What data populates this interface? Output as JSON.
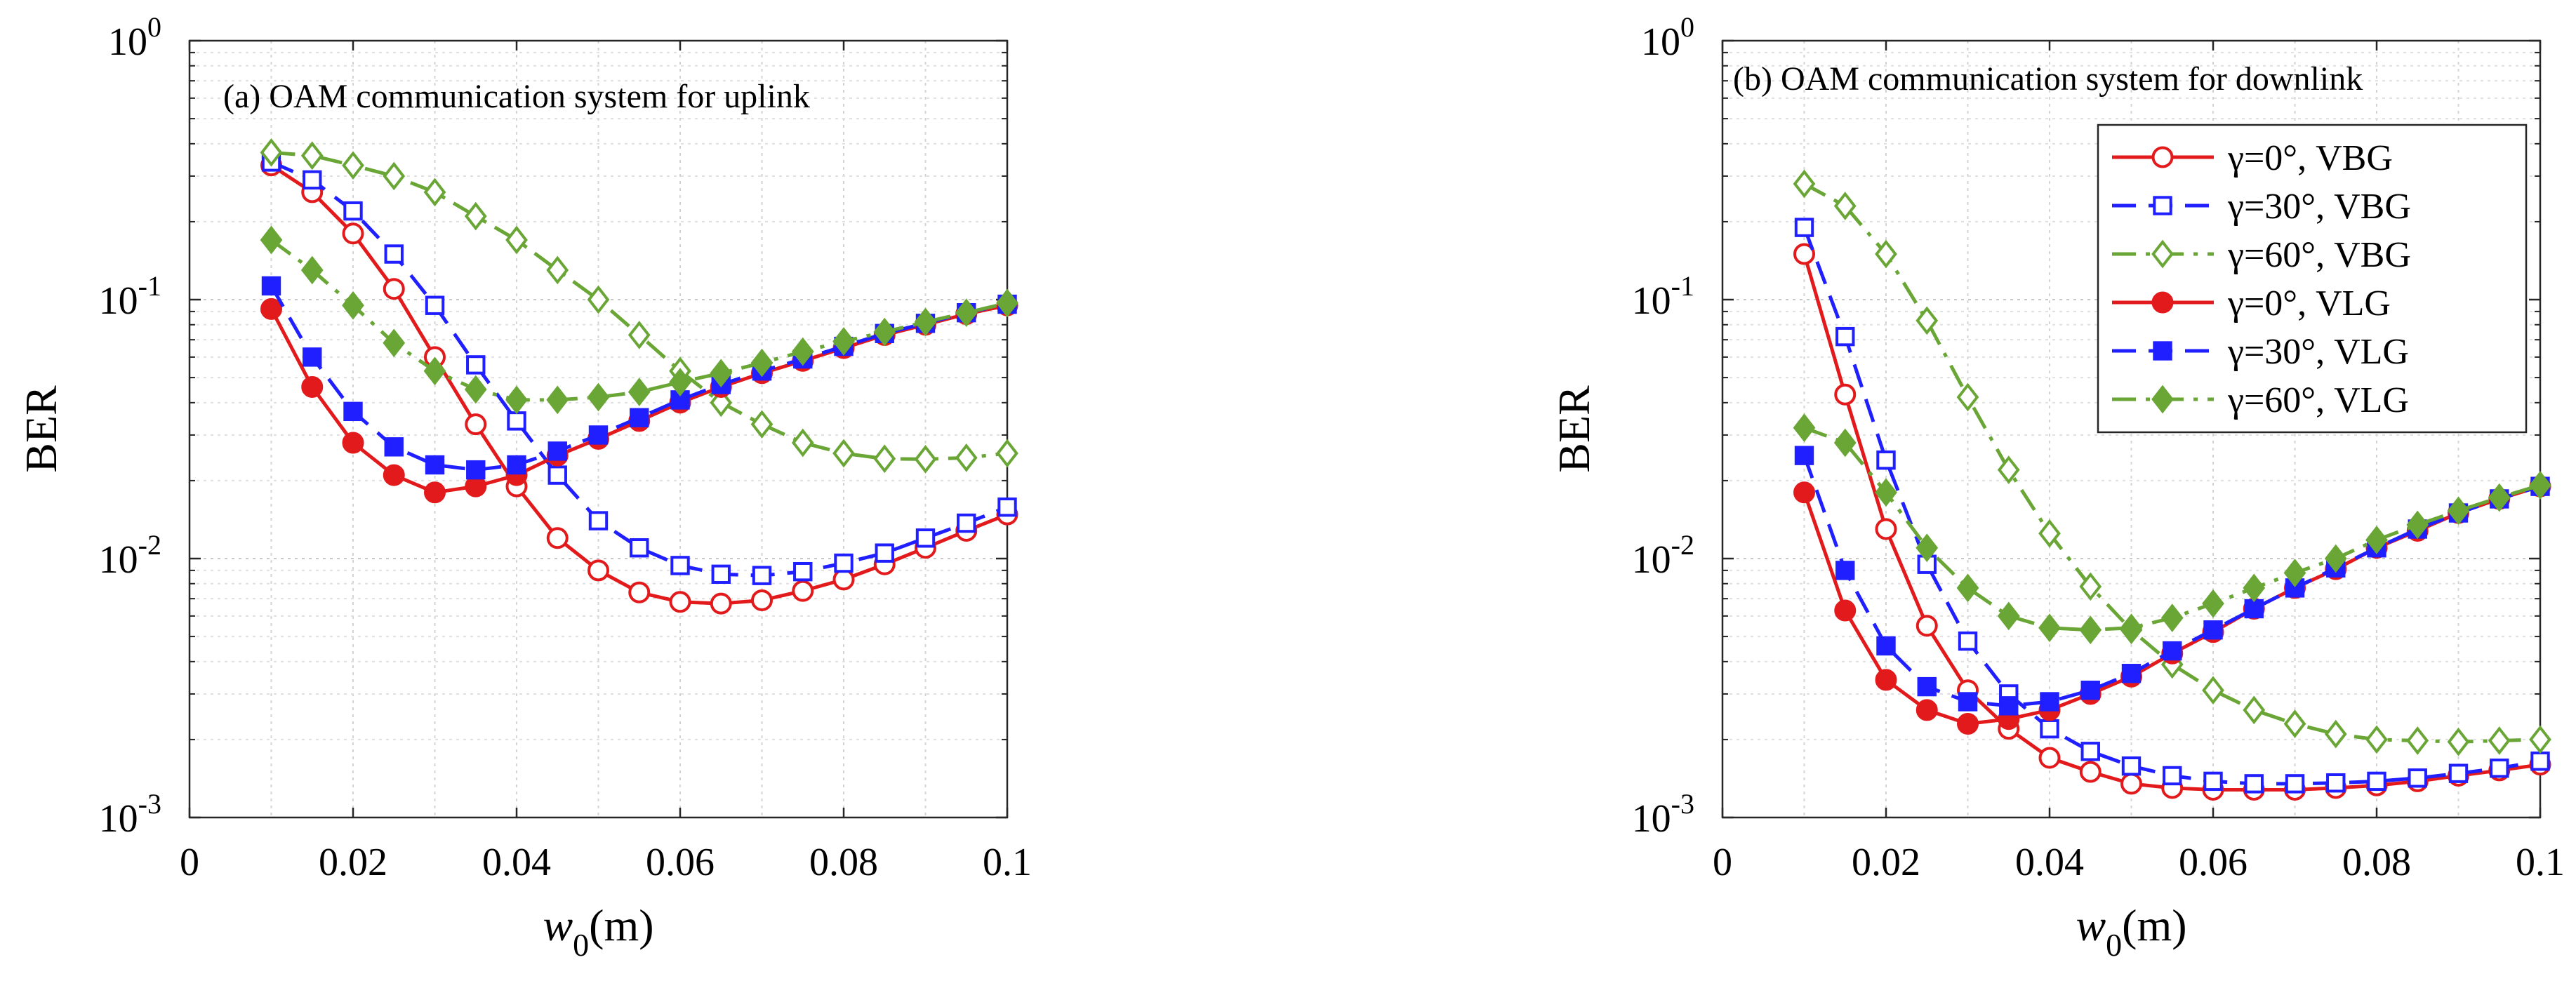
{
  "chart_data": [
    {
      "type": "line",
      "title": "(a) OAM communication system for uplink",
      "xlabel_base": "w",
      "xlabel_sub": "0",
      "xlabel_unit": "(m)",
      "ylabel": "BER",
      "xlim": [
        0,
        0.1
      ],
      "ylim": [
        0.001,
        1
      ],
      "yscale": "log",
      "grid": true,
      "legend": null,
      "xticks": [
        "0",
        "0.02",
        "0.04",
        "0.06",
        "0.08",
        "0.1"
      ],
      "yticks": [
        {
          "base": "10",
          "exp": "-3"
        },
        {
          "base": "10",
          "exp": "-2"
        },
        {
          "base": "10",
          "exp": "-1"
        },
        {
          "base": "10",
          "exp": "0"
        }
      ],
      "x": [
        0.01,
        0.015,
        0.02,
        0.025,
        0.03,
        0.035,
        0.04,
        0.045,
        0.05,
        0.055,
        0.06,
        0.065,
        0.07,
        0.075,
        0.08,
        0.085,
        0.09,
        0.095,
        0.1
      ],
      "series": [
        {
          "name": "γ=0°, VBG",
          "color": "#e31a1c",
          "dash": "solid",
          "marker": "circle",
          "filled": false,
          "values": [
            0.33,
            0.26,
            0.18,
            0.11,
            0.06,
            0.033,
            0.019,
            0.012,
            0.009,
            0.0074,
            0.0068,
            0.0067,
            0.0069,
            0.0075,
            0.0083,
            0.0095,
            0.011,
            0.0128,
            0.0148
          ]
        },
        {
          "name": "γ=30°, VBG",
          "color": "#1f1fff",
          "dash": "dashed",
          "marker": "square",
          "filled": false,
          "values": [
            0.34,
            0.29,
            0.22,
            0.15,
            0.095,
            0.056,
            0.034,
            0.021,
            0.014,
            0.011,
            0.0094,
            0.0087,
            0.0086,
            0.0089,
            0.0096,
            0.0105,
            0.012,
            0.0137,
            0.0158
          ]
        },
        {
          "name": "γ=60°, VBG",
          "color": "#6aa636",
          "dash": "dashdot",
          "marker": "diamond",
          "filled": false,
          "values": [
            0.37,
            0.36,
            0.33,
            0.3,
            0.26,
            0.21,
            0.17,
            0.13,
            0.1,
            0.073,
            0.053,
            0.04,
            0.033,
            0.028,
            0.0255,
            0.0243,
            0.0242,
            0.0245,
            0.0255
          ]
        },
        {
          "name": "γ=0°, VLG",
          "color": "#e31a1c",
          "dash": "solid",
          "marker": "circle",
          "filled": true,
          "values": [
            0.092,
            0.046,
            0.028,
            0.021,
            0.018,
            0.019,
            0.021,
            0.025,
            0.029,
            0.034,
            0.04,
            0.046,
            0.052,
            0.058,
            0.065,
            0.073,
            0.08,
            0.088,
            0.095
          ]
        },
        {
          "name": "γ=30°, VLG",
          "color": "#1f1fff",
          "dash": "dashed",
          "marker": "square",
          "filled": true,
          "values": [
            0.113,
            0.06,
            0.037,
            0.027,
            0.023,
            0.022,
            0.023,
            0.026,
            0.03,
            0.035,
            0.041,
            0.047,
            0.053,
            0.059,
            0.066,
            0.074,
            0.081,
            0.089,
            0.096
          ]
        },
        {
          "name": "γ=60°, VLG",
          "color": "#6aa636",
          "dash": "dashdot",
          "marker": "diamond",
          "filled": true,
          "values": [
            0.17,
            0.13,
            0.095,
            0.068,
            0.053,
            0.045,
            0.041,
            0.041,
            0.042,
            0.044,
            0.048,
            0.052,
            0.057,
            0.063,
            0.069,
            0.075,
            0.082,
            0.089,
            0.097
          ]
        }
      ]
    },
    {
      "type": "line",
      "title": "(b) OAM communication system for downlink",
      "xlabel_base": "w",
      "xlabel_sub": "0",
      "xlabel_unit": "(m)",
      "ylabel": "BER",
      "xlim": [
        0,
        0.1
      ],
      "ylim": [
        0.001,
        1
      ],
      "yscale": "log",
      "grid": true,
      "legend": "top-right",
      "xticks": [
        "0",
        "0.02",
        "0.04",
        "0.06",
        "0.08",
        "0.1"
      ],
      "yticks": [
        {
          "base": "10",
          "exp": "-3"
        },
        {
          "base": "10",
          "exp": "-2"
        },
        {
          "base": "10",
          "exp": "-1"
        },
        {
          "base": "10",
          "exp": "0"
        }
      ],
      "x": [
        0.01,
        0.015,
        0.02,
        0.025,
        0.03,
        0.035,
        0.04,
        0.045,
        0.05,
        0.055,
        0.06,
        0.065,
        0.07,
        0.075,
        0.08,
        0.085,
        0.09,
        0.095,
        0.1
      ],
      "series": [
        {
          "name": "γ=0°, VBG",
          "color": "#e31a1c",
          "dash": "solid",
          "marker": "circle",
          "filled": false,
          "values": [
            0.15,
            0.043,
            0.013,
            0.0055,
            0.0031,
            0.0022,
            0.0017,
            0.0015,
            0.00135,
            0.0013,
            0.00128,
            0.00128,
            0.00128,
            0.0013,
            0.00133,
            0.00138,
            0.00145,
            0.00152,
            0.0016
          ]
        },
        {
          "name": "γ=30°, VBG",
          "color": "#1f1fff",
          "dash": "dashed",
          "marker": "square",
          "filled": false,
          "values": [
            0.19,
            0.072,
            0.024,
            0.0095,
            0.0048,
            0.003,
            0.0022,
            0.0018,
            0.00158,
            0.00145,
            0.00138,
            0.00135,
            0.00135,
            0.00136,
            0.00138,
            0.00142,
            0.00148,
            0.00155,
            0.00165
          ]
        },
        {
          "name": "γ=60°, VBG",
          "color": "#6aa636",
          "dash": "dashdot",
          "marker": "diamond",
          "filled": false,
          "values": [
            0.28,
            0.23,
            0.15,
            0.083,
            0.042,
            0.022,
            0.0125,
            0.0078,
            0.0053,
            0.0039,
            0.0031,
            0.0026,
            0.0023,
            0.0021,
            0.002,
            0.00198,
            0.00196,
            0.00198,
            0.002
          ]
        },
        {
          "name": "γ=0°, VLG",
          "color": "#e31a1c",
          "dash": "solid",
          "marker": "circle",
          "filled": true,
          "values": [
            0.018,
            0.0063,
            0.0034,
            0.0026,
            0.0023,
            0.0024,
            0.0026,
            0.003,
            0.0035,
            0.0043,
            0.0052,
            0.0064,
            0.0077,
            0.0091,
            0.011,
            0.0128,
            0.015,
            0.017,
            0.019
          ]
        },
        {
          "name": "γ=30°, VLG",
          "color": "#1f1fff",
          "dash": "dashed",
          "marker": "square",
          "filled": true,
          "values": [
            0.025,
            0.009,
            0.0046,
            0.0032,
            0.0028,
            0.0027,
            0.0028,
            0.0031,
            0.0036,
            0.0044,
            0.0053,
            0.0064,
            0.0077,
            0.0092,
            0.011,
            0.013,
            0.015,
            0.017,
            0.019
          ]
        },
        {
          "name": "γ=60°, VLG",
          "color": "#6aa636",
          "dash": "dashdot",
          "marker": "diamond",
          "filled": true,
          "values": [
            0.032,
            0.028,
            0.018,
            0.011,
            0.0077,
            0.006,
            0.0054,
            0.0053,
            0.0054,
            0.0059,
            0.0067,
            0.0077,
            0.0088,
            0.01,
            0.0118,
            0.0135,
            0.0153,
            0.0172,
            0.0192
          ]
        }
      ]
    }
  ]
}
